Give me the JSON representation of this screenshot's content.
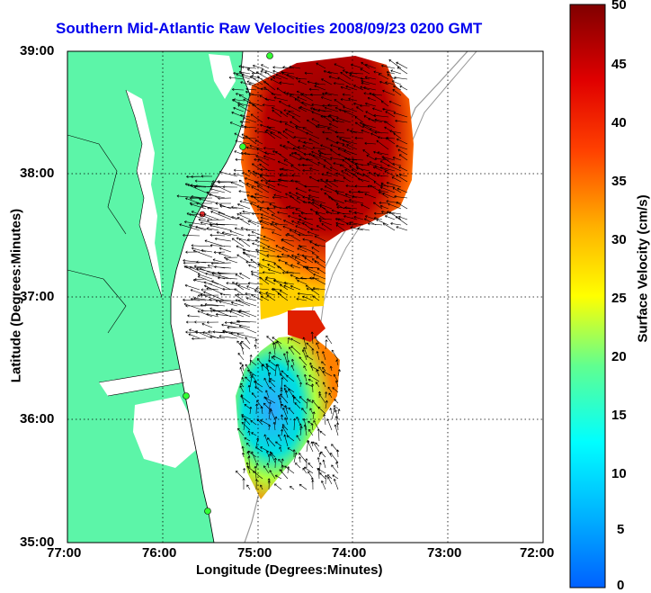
{
  "title": "Southern Mid-Atlantic Raw Velocities 2008/09/23 0200 GMT",
  "xlabel": "Longitude (Degrees:Minutes)",
  "ylabel": "Latitude (Degrees:Minutes)",
  "x_ticks": [
    "77:00",
    "76:00",
    "75:00",
    "74:00",
    "73:00",
    "72:00"
  ],
  "y_ticks": [
    "39:00",
    "38:00",
    "37:00",
    "36:00",
    "35:00"
  ],
  "colorbar": {
    "label": "Surface Velocity (cm/s)",
    "ticks": [
      "0",
      "5",
      "10",
      "15",
      "20",
      "25",
      "30",
      "35",
      "40",
      "45",
      "50"
    ],
    "min": 0,
    "max": 50
  },
  "colors": {
    "land": "#5cf5a8",
    "title": "#0000ee",
    "grid": "#000000"
  },
  "chart_data": {
    "type": "heatmap",
    "x_range_deg": [
      -77,
      -72
    ],
    "y_range_deg": [
      35,
      39
    ],
    "value_range": [
      0,
      50
    ],
    "units": "cm/s",
    "grid": true
  }
}
